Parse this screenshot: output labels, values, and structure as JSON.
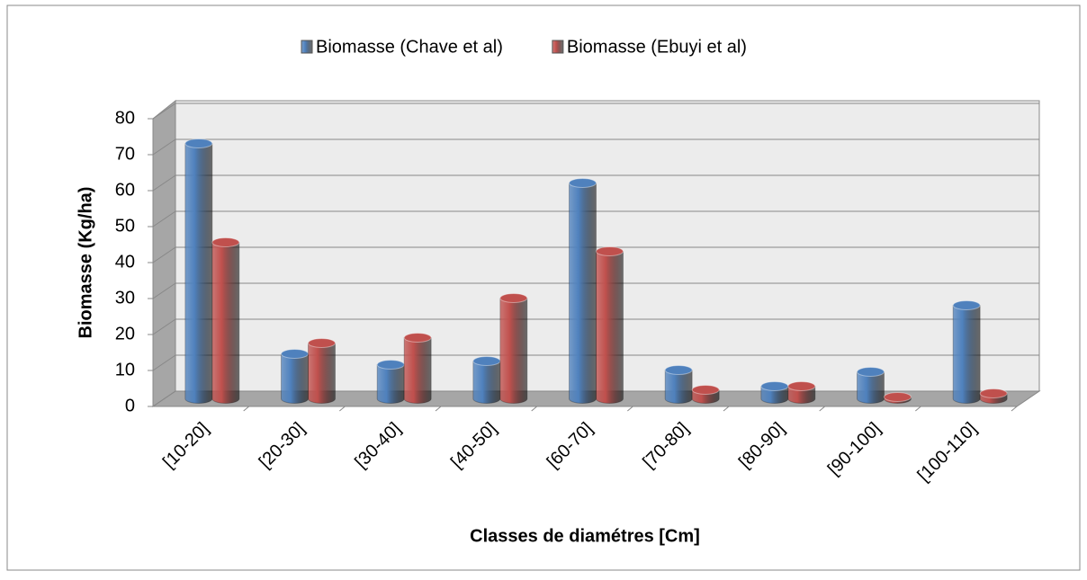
{
  "chart_data": {
    "type": "bar3d",
    "x_label": "Classes de diamétres [Cm]",
    "y_label": "Biomasse (Kg/ha)",
    "categories": [
      "[10-20]",
      "[20-30]",
      "[30-40]",
      "[40-50]",
      "[60-70]",
      "[70-80]",
      "[80-90]",
      "[90-100]",
      "[100-110]"
    ],
    "series": [
      {
        "name": "Biomasse (Chave et al)",
        "color": "#4f81bd",
        "values": [
          71,
          12.5,
          9.5,
          10.5,
          60,
          8,
          3.5,
          7.5,
          26
        ]
      },
      {
        "name": "Biomasse (Ebuyi et al)",
        "color": "#c0504d",
        "values": [
          43.5,
          15.5,
          17,
          28,
          41,
          2.5,
          3.5,
          0.5,
          1.5
        ]
      }
    ],
    "ylim": [
      0,
      80
    ],
    "yticks": [
      0,
      10,
      20,
      30,
      40,
      50,
      60,
      70,
      80
    ],
    "grid": true,
    "legend": "top"
  }
}
